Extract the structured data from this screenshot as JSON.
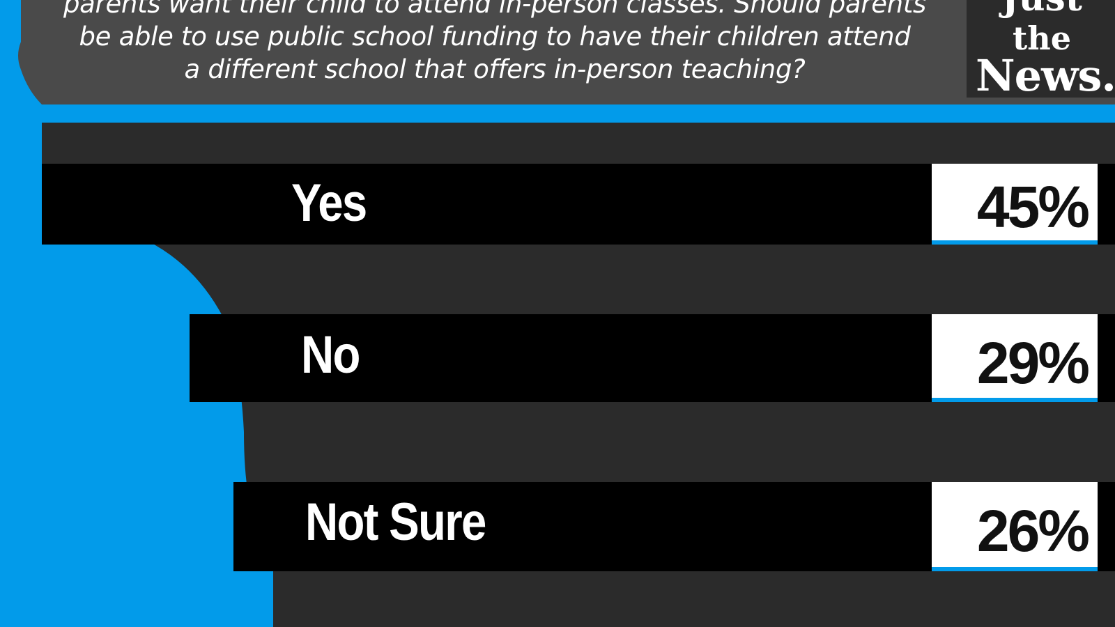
{
  "header": {
    "question_lines": [
      "parents want their child to attend in-person classes. Should parents",
      "be able to use public school funding to have their children attend",
      "a different school that offers in-person teaching?"
    ],
    "logo": {
      "line1": "Just",
      "line2": "the",
      "line3": "News."
    }
  },
  "colors": {
    "background_blue": "#029bea",
    "header_gray": "#4a4a4a",
    "band_dark": "#2b2b2b",
    "band_black": "#000000",
    "value_box": "#ffffff",
    "value_text": "#111111"
  },
  "chart_data": {
    "type": "bar",
    "categories": [
      "Yes",
      "No",
      "Not Sure"
    ],
    "values": [
      45,
      29,
      26
    ],
    "value_labels": [
      "45%",
      "29%",
      "26%"
    ],
    "unit": "%"
  }
}
